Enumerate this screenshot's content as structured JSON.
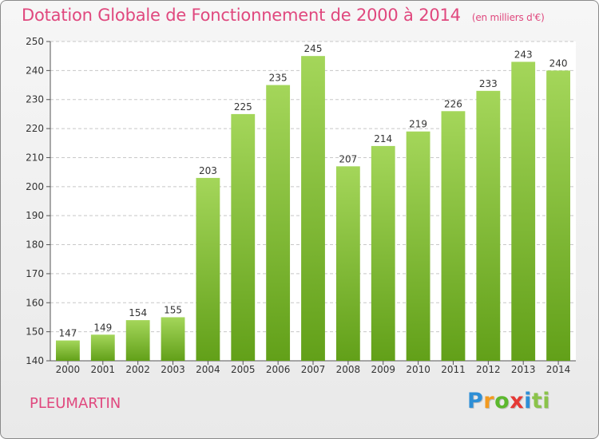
{
  "header": {
    "title": "Dotation Globale de Fonctionnement de 2000 à 2014",
    "unit": "(en milliers d'€)"
  },
  "footer": {
    "commune": "PLEUMARTIN",
    "logo": [
      "P",
      "r",
      "o",
      "x",
      "i",
      "ti"
    ]
  },
  "colors": {
    "title": "#e0487e",
    "bar_top": "#a4d65a",
    "bar_bottom": "#62a019",
    "grid": "#c8c8c8"
  },
  "chart_data": {
    "type": "bar",
    "title": "Dotation Globale de Fonctionnement de 2000 à 2014",
    "subtitle": "(en milliers d'€)",
    "xlabel": "",
    "ylabel": "",
    "categories": [
      "2000",
      "2001",
      "2002",
      "2003",
      "2004",
      "2005",
      "2006",
      "2007",
      "2008",
      "2009",
      "2010",
      "2011",
      "2012",
      "2013",
      "2014"
    ],
    "values": [
      147,
      149,
      154,
      155,
      203,
      225,
      235,
      245,
      207,
      214,
      219,
      226,
      233,
      243,
      240
    ],
    "ylim": [
      140,
      250
    ],
    "yticks": [
      140,
      150,
      160,
      170,
      180,
      190,
      200,
      210,
      220,
      230,
      240,
      250
    ],
    "grid": true,
    "legend": "none"
  }
}
